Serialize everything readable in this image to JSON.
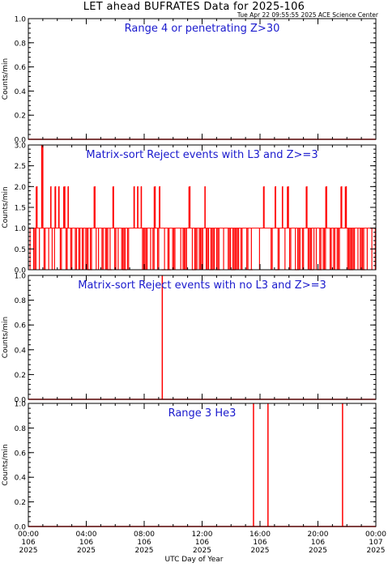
{
  "header": {
    "title": "LET ahead BUFRATES Data for 2025-106",
    "subtitle": "Tue Apr 22 09:55:55 2025 ACE Science Center"
  },
  "footer": {
    "xlabel": "UTC Day of Year"
  },
  "colors": {
    "series": "#ff0000",
    "panel_title": "#1a1acd",
    "axes": "#000000"
  },
  "chart_data": [
    {
      "type": "line",
      "title": "Range 4 or  penetrating Z>30",
      "ylabel": "Counts/min",
      "ylim": [
        0,
        1.0
      ],
      "yticks": [
        "0.0",
        "0.2",
        "0.4",
        "0.6",
        "0.8",
        "1.0"
      ],
      "xlim": [
        0,
        24
      ],
      "x_units": "hours UTC on day 106",
      "series": [
        {
          "spikes": []
        }
      ]
    },
    {
      "type": "line",
      "title": "Matrix-sort Reject events with L3 and Z>=3",
      "ylabel": "Counts/min",
      "ylim": [
        0,
        3.0
      ],
      "yticks": [
        "0.0",
        "0.5",
        "1.0",
        "1.5",
        "2.0",
        "2.5",
        "3.0"
      ],
      "xlim": [
        0,
        24
      ],
      "x_units": "hours UTC on day 106",
      "series": [
        {
          "baseline": 1,
          "spikes": [
            {
              "x": 0.55,
              "y": 2
            },
            {
              "x": 0.93,
              "y": 3
            },
            {
              "x": 1.55,
              "y": 2
            },
            {
              "x": 1.85,
              "y": 2
            },
            {
              "x": 2.1,
              "y": 2
            },
            {
              "x": 2.45,
              "y": 2
            },
            {
              "x": 2.75,
              "y": 2
            },
            {
              "x": 4.55,
              "y": 2
            },
            {
              "x": 5.85,
              "y": 2
            },
            {
              "x": 7.3,
              "y": 2
            },
            {
              "x": 7.55,
              "y": 2
            },
            {
              "x": 7.8,
              "y": 2
            },
            {
              "x": 8.7,
              "y": 2
            },
            {
              "x": 9.05,
              "y": 2
            },
            {
              "x": 11.1,
              "y": 2
            },
            {
              "x": 12.2,
              "y": 2
            },
            {
              "x": 16.25,
              "y": 2
            },
            {
              "x": 17.05,
              "y": 2
            },
            {
              "x": 17.55,
              "y": 2
            },
            {
              "x": 17.9,
              "y": 2
            },
            {
              "x": 19.2,
              "y": 2
            },
            {
              "x": 20.55,
              "y": 2
            },
            {
              "x": 21.6,
              "y": 2
            },
            {
              "x": 21.9,
              "y": 2
            }
          ],
          "gaps": [
            {
              "x": 4.25,
              "y": 0
            },
            {
              "x": 5.6,
              "y": 0
            },
            {
              "x": 6.65,
              "y": 0
            },
            {
              "x": 9.35,
              "y": 0
            },
            {
              "x": 9.7,
              "y": 0
            },
            {
              "x": 11.45,
              "y": 0
            },
            {
              "x": 12.65,
              "y": 0
            },
            {
              "x": 13.1,
              "y": 0
            },
            {
              "x": 14.15,
              "y": 0
            },
            {
              "x": 15.35,
              "y": 0
            },
            {
              "x": 17.2,
              "y": 0
            },
            {
              "x": 18.55,
              "y": 0
            },
            {
              "x": 19.55,
              "y": 0
            },
            {
              "x": 20.1,
              "y": 0
            },
            {
              "x": 22.3,
              "y": 0
            },
            {
              "x": 23.1,
              "y": 0
            }
          ]
        }
      ]
    },
    {
      "type": "line",
      "title": "Matrix-sort Reject events with no L3 and Z>=3",
      "ylabel": "Counts/min",
      "ylim": [
        0,
        1.0
      ],
      "yticks": [
        "0.0",
        "0.2",
        "0.4",
        "0.6",
        "0.8",
        "1.0"
      ],
      "xlim": [
        0,
        24
      ],
      "x_units": "hours UTC on day 106",
      "series": [
        {
          "spikes": [
            {
              "x": 9.25,
              "y": 1
            }
          ]
        }
      ]
    },
    {
      "type": "line",
      "title": "Range 3 He3",
      "ylabel": "Counts/min",
      "ylim": [
        0,
        1.0
      ],
      "yticks": [
        "0.0",
        "0.2",
        "0.4",
        "0.6",
        "0.8",
        "1.0"
      ],
      "xlim": [
        0,
        24
      ],
      "x_units": "hours UTC on day 106",
      "series": [
        {
          "spikes": [
            {
              "x": 15.55,
              "y": 1
            },
            {
              "x": 16.55,
              "y": 1
            },
            {
              "x": 21.7,
              "y": 1
            }
          ]
        }
      ]
    }
  ],
  "x_axis": {
    "ticks": [
      {
        "time": "00:00",
        "doy": "106",
        "year": "2025"
      },
      {
        "time": "04:00",
        "doy": "106",
        "year": "2025"
      },
      {
        "time": "08:00",
        "doy": "106",
        "year": "2025"
      },
      {
        "time": "12:00",
        "doy": "106",
        "year": "2025"
      },
      {
        "time": "16:00",
        "doy": "106",
        "year": "2025"
      },
      {
        "time": "20:00",
        "doy": "106",
        "year": "2025"
      },
      {
        "time": "00:00",
        "doy": "107",
        "year": "2025"
      }
    ]
  }
}
